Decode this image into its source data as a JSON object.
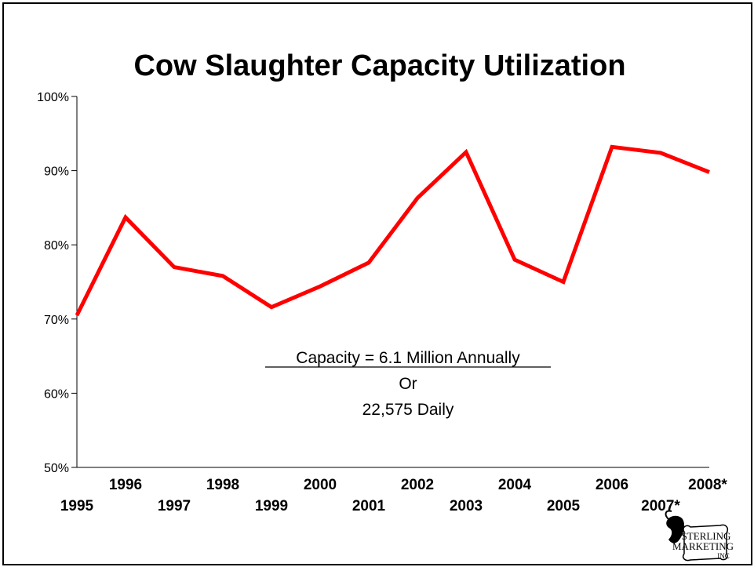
{
  "chart_data": {
    "type": "line",
    "title": "Cow Slaughter Capacity Utilization",
    "xlabel": "",
    "ylabel": "",
    "ylim": [
      0.5,
      1.0
    ],
    "y_ticks": [
      0.5,
      0.6,
      0.7,
      0.8,
      0.9,
      1.0
    ],
    "y_tick_labels": [
      "50%",
      "60%",
      "70%",
      "80%",
      "90%",
      "100%"
    ],
    "categories": [
      "1995",
      "1996",
      "1997",
      "1998",
      "1999",
      "2000",
      "2001",
      "2002",
      "2003",
      "2004",
      "2005",
      "2006",
      "2007*",
      "2008*"
    ],
    "series": [
      {
        "color": "#ff0000",
        "values": [
          0.705,
          0.837,
          0.77,
          0.758,
          0.716,
          0.744,
          0.776,
          0.863,
          0.925,
          0.78,
          0.75,
          0.932,
          0.924,
          0.898
        ]
      }
    ],
    "grid": false,
    "legend": "none"
  },
  "annotation": {
    "line1": "Capacity = 6.1 Million Annually",
    "line2": "Or",
    "line3": "22,575 Daily"
  },
  "logo": {
    "line1": "STERLING",
    "line2": "MARKETING",
    "line3": "INC"
  }
}
